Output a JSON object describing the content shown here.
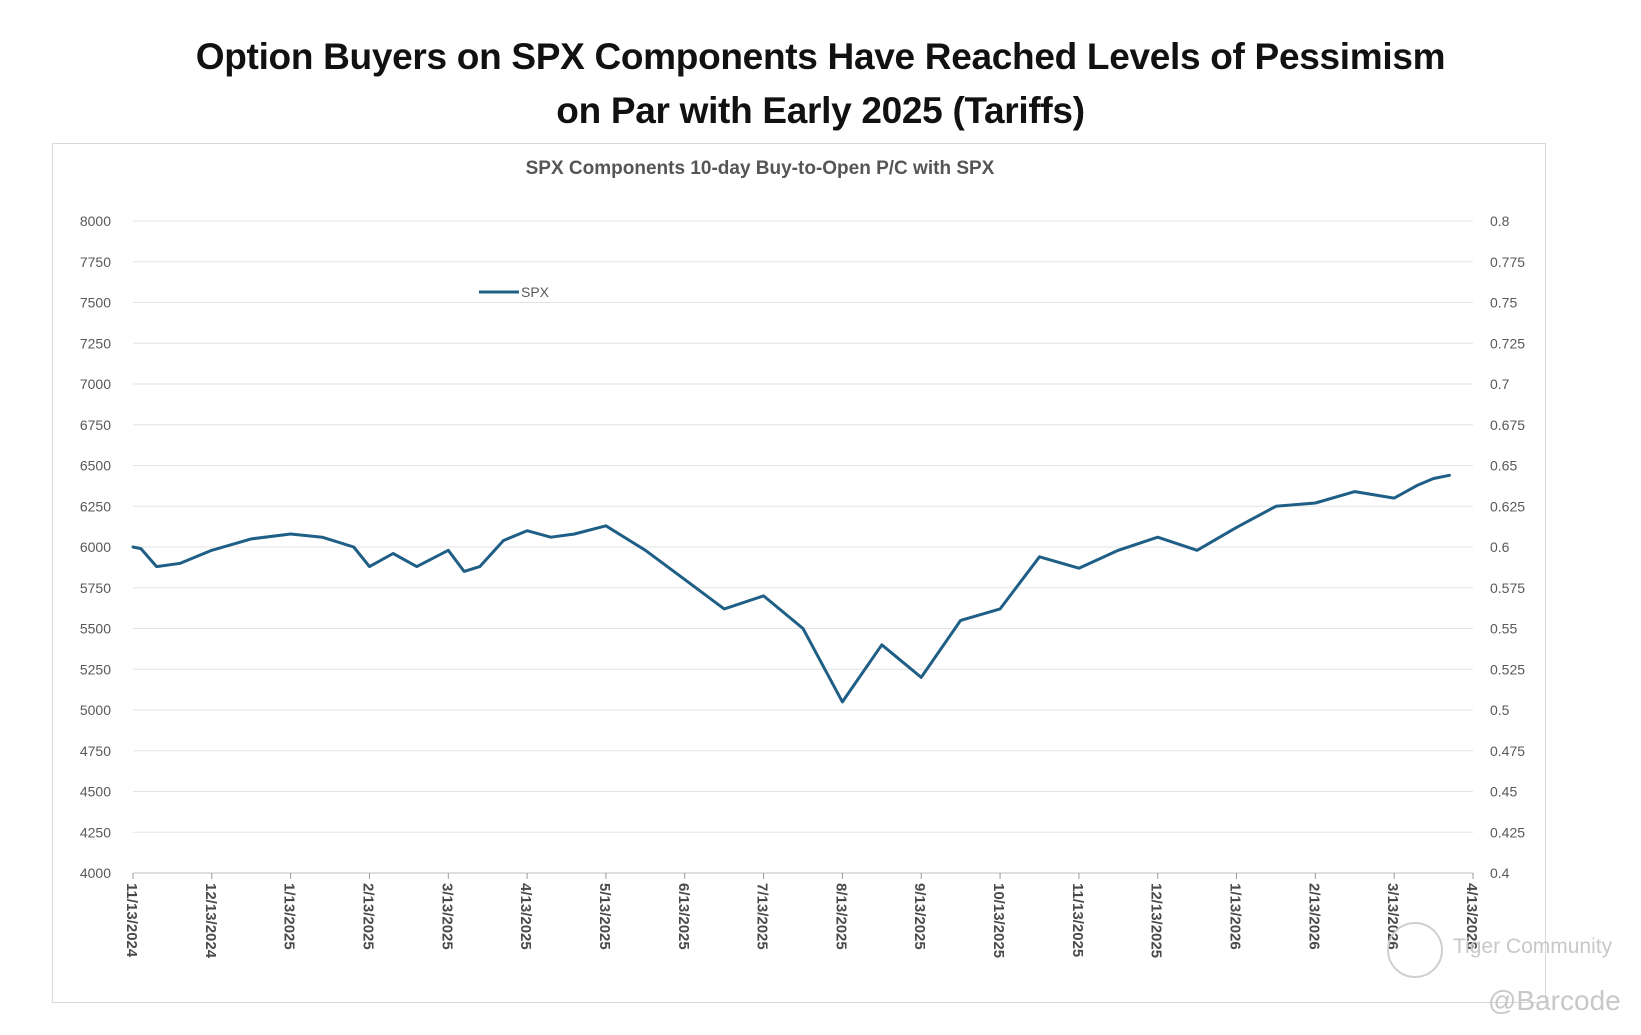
{
  "headline": {
    "line1": "Option Buyers on SPX Components Have Reached Levels of Pessimism",
    "line2": "on Par with Early 2025 (Tariffs)"
  },
  "watermark": {
    "community": "Tiger Community",
    "handle": "@Barcode"
  },
  "chart_data": {
    "type": "line",
    "title": "SPX Components 10-day Buy-to-Open P/C with SPX",
    "xlabel": "",
    "ylabel": "",
    "legend_position": "top-center",
    "grid": true,
    "x_ticks": [
      "11/13/2024",
      "12/13/2024",
      "1/13/2025",
      "2/13/2025",
      "3/13/2025",
      "4/13/2025",
      "5/13/2025",
      "6/13/2025",
      "7/13/2025",
      "8/13/2025",
      "9/13/2025",
      "10/13/2025",
      "11/13/2025",
      "12/13/2025",
      "1/13/2026",
      "2/13/2026",
      "3/13/2026",
      "4/13/2026"
    ],
    "y_left": {
      "range": [
        4000,
        8000
      ],
      "ticks": [
        "4000",
        "4250",
        "4500",
        "4750",
        "5000",
        "5250",
        "5500",
        "5750",
        "6000",
        "6250",
        "6500",
        "6750",
        "7000",
        "7250",
        "7500",
        "7750",
        "8000"
      ]
    },
    "y_right": {
      "range": [
        0.4,
        0.8
      ],
      "ticks": [
        "0.4",
        "0.425",
        "0.45",
        "0.475",
        "0.5",
        "0.525",
        "0.55",
        "0.575",
        "0.6",
        "0.625",
        "0.65",
        "0.675",
        "0.7",
        "0.725",
        "0.75",
        "0.775",
        "0.8"
      ]
    },
    "series": [
      {
        "name": "SPX",
        "axis": "left",
        "color": "#1f5f86",
        "x": [
          0,
          0.1,
          0.3,
          0.6,
          1,
          1.5,
          2,
          2.4,
          2.8,
          3,
          3.3,
          3.6,
          4,
          4.2,
          4.4,
          4.7,
          5,
          5.3,
          5.6,
          6,
          6.5,
          7,
          7.5,
          8,
          8.5,
          9,
          9.5,
          10,
          10.5,
          11,
          11.5,
          12,
          12.5,
          13,
          13.5,
          14,
          14.5,
          15,
          15.5,
          16,
          16.3,
          16.5,
          16.7
        ],
        "values": [
          6000,
          5990,
          5880,
          5900,
          5980,
          6050,
          6080,
          6060,
          6000,
          5880,
          5960,
          5880,
          5980,
          5850,
          5880,
          6040,
          6100,
          6060,
          6080,
          6130,
          5980,
          5800,
          5620,
          5700,
          5500,
          5050,
          5400,
          5200,
          5550,
          5620,
          5940,
          5870,
          5980,
          6060,
          5980,
          6120,
          6250,
          6270,
          6340,
          6300,
          6380,
          6420,
          6440
        ]
      }
    ]
  }
}
